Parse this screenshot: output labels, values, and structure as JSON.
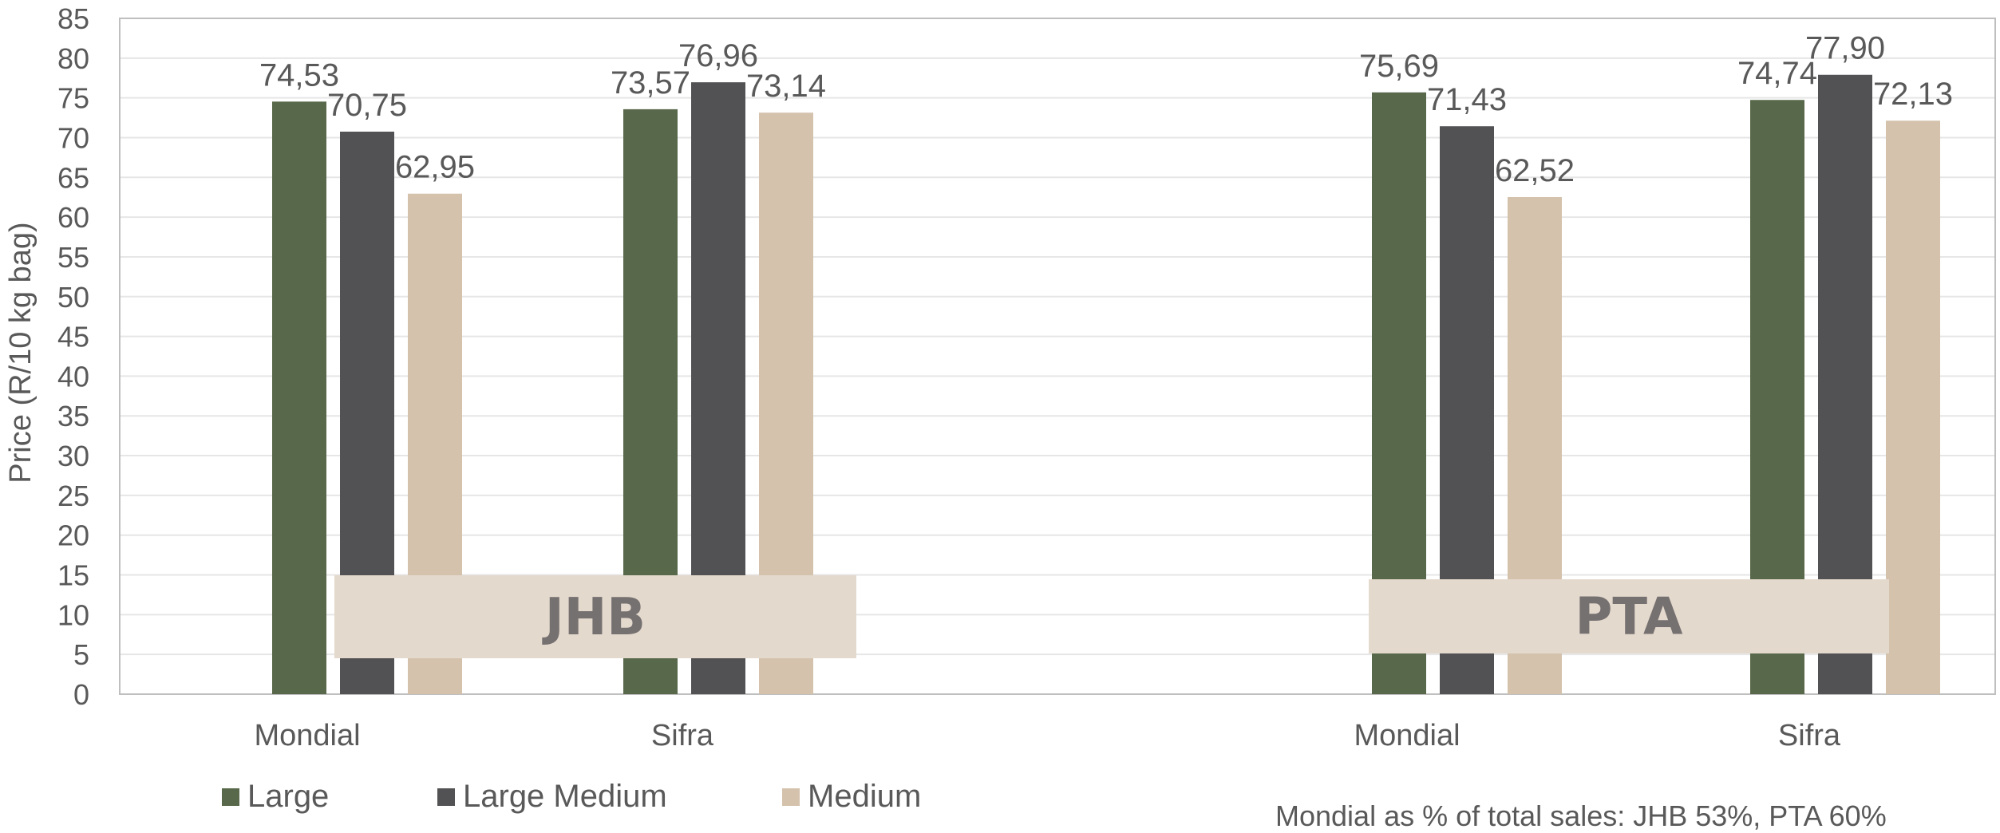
{
  "chart_data": {
    "type": "bar",
    "ylabel": "Price (R/10 kg bag)",
    "ylim": [
      0,
      85
    ],
    "ytick_step": 5,
    "grid": true,
    "legend_position": "bottom-left",
    "groups": [
      {
        "label": "JHB",
        "categories": [
          "Mondial",
          "Sifra"
        ]
      },
      {
        "label": "PTA",
        "categories": [
          "Mondial",
          "Sifra"
        ]
      }
    ],
    "series": [
      {
        "name": "Large",
        "color": "#58684a",
        "values": [
          74.53,
          73.57,
          75.69,
          74.74
        ],
        "labels": [
          "74,53",
          "73,57",
          "75,69",
          "74,74"
        ]
      },
      {
        "name": "Large Medium",
        "color": "#525254",
        "values": [
          70.75,
          76.96,
          71.43,
          77.9
        ],
        "labels": [
          "70,75",
          "76,96",
          "71,43",
          "77,90"
        ]
      },
      {
        "name": "Medium",
        "color": "#d4c2ad",
        "values": [
          62.95,
          73.14,
          62.52,
          72.13
        ],
        "labels": [
          "62,95",
          "73,14",
          "62,52",
          "72,13"
        ]
      }
    ],
    "note": "Mondial as % of total sales: JHB 53%, PTA 60%"
  },
  "colors": {
    "axis": "#bfbfbf",
    "grid": "#e6e6e6",
    "text": "#595959",
    "group_box": "#e4d9cd",
    "group_text": "#767171"
  }
}
